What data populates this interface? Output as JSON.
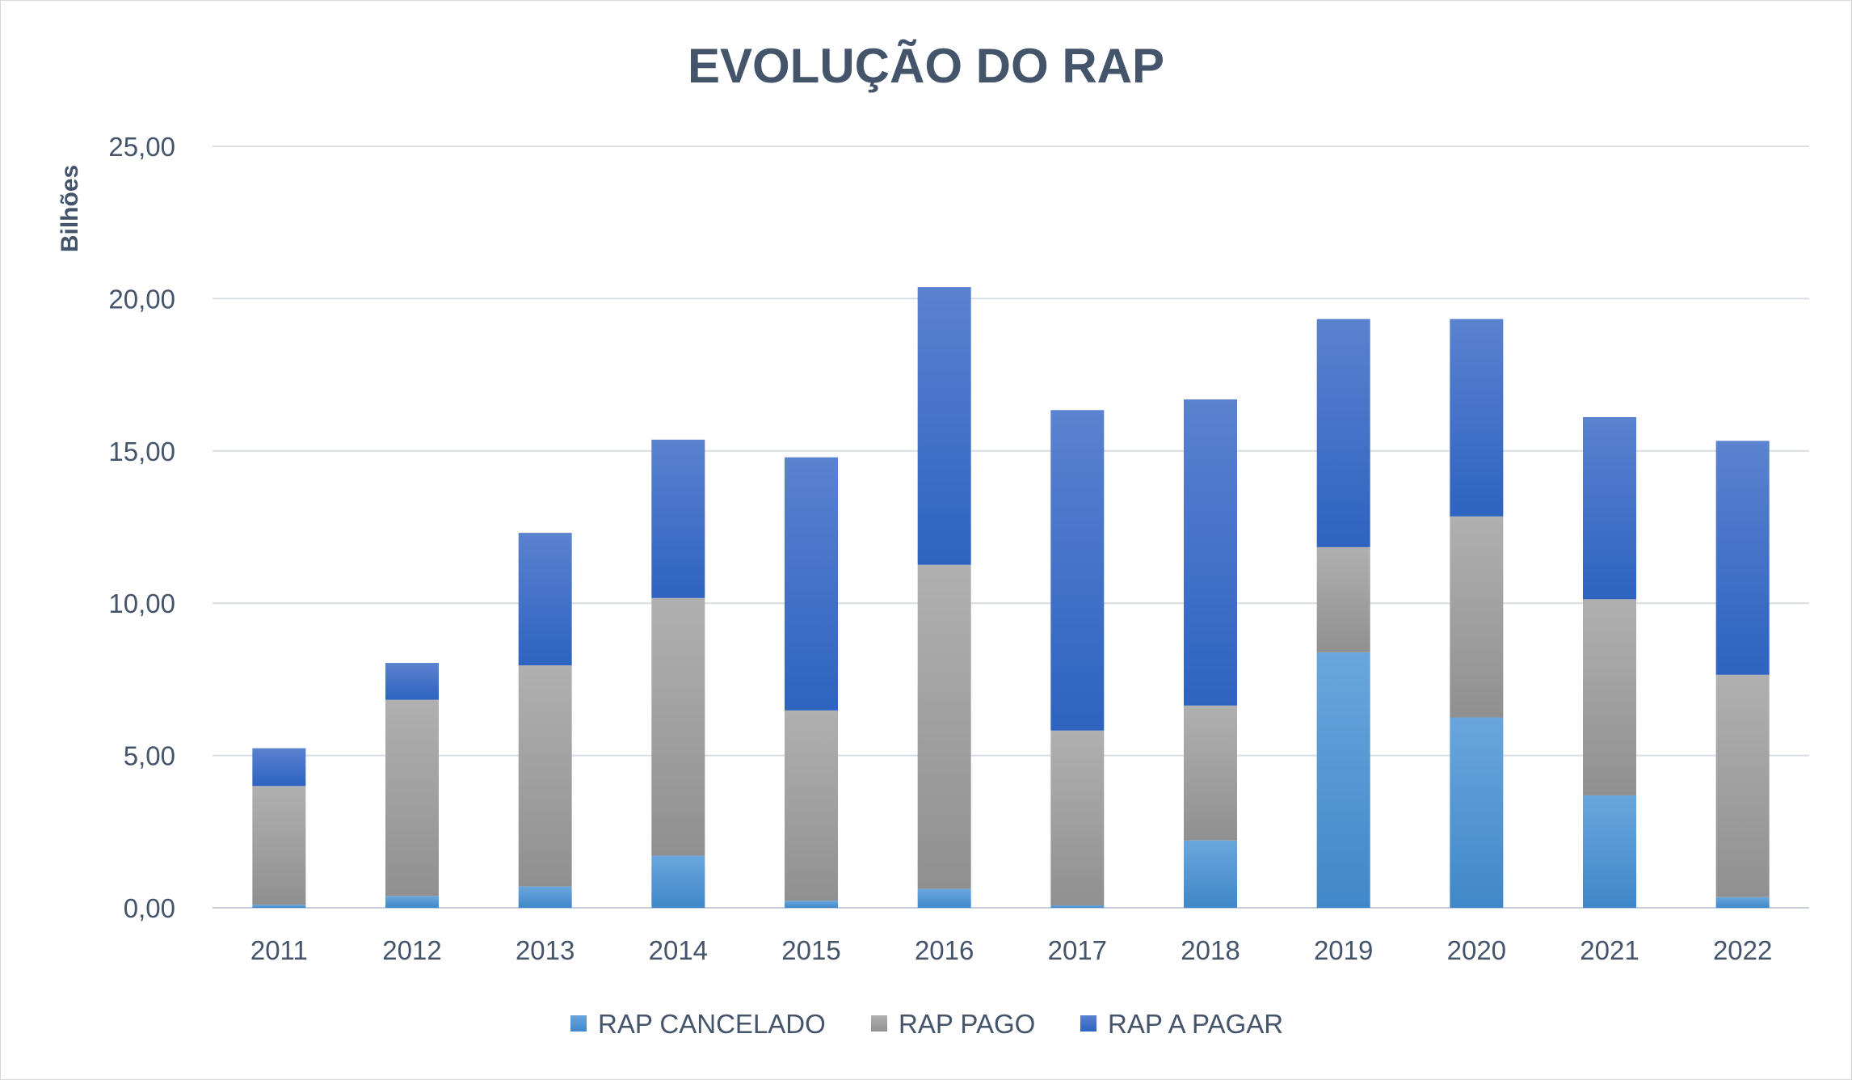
{
  "chart_data": {
    "type": "bar",
    "stacked": true,
    "title": "EVOLUÇÃO DO RAP",
    "xlabel": "",
    "ylabel": "Bilhões",
    "ylim": [
      0,
      25
    ],
    "yticks": [
      "0,00",
      "5,00",
      "10,00",
      "15,00",
      "20,00",
      "25,00"
    ],
    "ytick_values": [
      0,
      5,
      10,
      15,
      20,
      25
    ],
    "grid": true,
    "legend_position": "bottom",
    "categories": [
      "2011",
      "2012",
      "2013",
      "2014",
      "2015",
      "2016",
      "2017",
      "2018",
      "2019",
      "2020",
      "2021",
      "2022"
    ],
    "series": [
      {
        "name": "RAP CANCELADO",
        "color": "#5b9bd5",
        "values": [
          0.1,
          0.39,
          0.7,
          1.71,
          0.23,
          0.62,
          0.08,
          2.21,
          8.39,
          6.25,
          3.69,
          0.35
        ]
      },
      {
        "name": "RAP PAGO",
        "color": "#a5a5a5",
        "values": [
          3.9,
          6.44,
          7.26,
          8.46,
          6.25,
          10.64,
          5.74,
          4.43,
          3.45,
          6.6,
          6.44,
          7.3
        ]
      },
      {
        "name": "RAP A PAGAR",
        "color": "#4472c4",
        "values": [
          1.24,
          1.21,
          4.35,
          5.2,
          8.31,
          9.12,
          10.52,
          10.05,
          7.49,
          6.48,
          5.98,
          7.68
        ]
      }
    ]
  }
}
